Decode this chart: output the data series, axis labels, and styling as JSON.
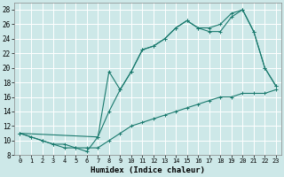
{
  "xlabel": "Humidex (Indice chaleur)",
  "bg_color": "#cde8e8",
  "line_color": "#1a7a6e",
  "grid_color": "#ffffff",
  "xlim": [
    -0.5,
    23.5
  ],
  "ylim": [
    8,
    29
  ],
  "xticks": [
    0,
    1,
    2,
    3,
    4,
    5,
    6,
    7,
    8,
    9,
    10,
    11,
    12,
    13,
    14,
    15,
    16,
    17,
    18,
    19,
    20,
    21,
    22,
    23
  ],
  "yticks": [
    8,
    10,
    12,
    14,
    16,
    18,
    20,
    22,
    24,
    26,
    28
  ],
  "line1_x": [
    0,
    1,
    2,
    3,
    4,
    5,
    6,
    7,
    8,
    9,
    10,
    11,
    12,
    13,
    14,
    15,
    16,
    17,
    18,
    19,
    20,
    21,
    22,
    23
  ],
  "line1_y": [
    11,
    10.5,
    10,
    9.5,
    9.5,
    9,
    9,
    9,
    10,
    11,
    12,
    12.5,
    13,
    13.5,
    14,
    14.5,
    15,
    15.5,
    16,
    16,
    16.5,
    16.5,
    16.5,
    17
  ],
  "line2_x": [
    0,
    1,
    2,
    3,
    4,
    5,
    6,
    7,
    8,
    9,
    10,
    11,
    12,
    13,
    14,
    15,
    16,
    17,
    18,
    19,
    20,
    21,
    22,
    23
  ],
  "line2_y": [
    11,
    10.5,
    10,
    9.5,
    9,
    9,
    8.5,
    10.5,
    14,
    17,
    19.5,
    22.5,
    23,
    24,
    25.5,
    26.5,
    25.5,
    25,
    25,
    27,
    28,
    25,
    20,
    17.5
  ],
  "line3_x": [
    0,
    7,
    8,
    9,
    10,
    11,
    12,
    13,
    14,
    15,
    16,
    17,
    18,
    19,
    20,
    21,
    22,
    23
  ],
  "line3_y": [
    11,
    10.5,
    19.5,
    17,
    19.5,
    22.5,
    23,
    24,
    25.5,
    26.5,
    25.5,
    25.5,
    26,
    27.5,
    28,
    25,
    20,
    17.5
  ]
}
